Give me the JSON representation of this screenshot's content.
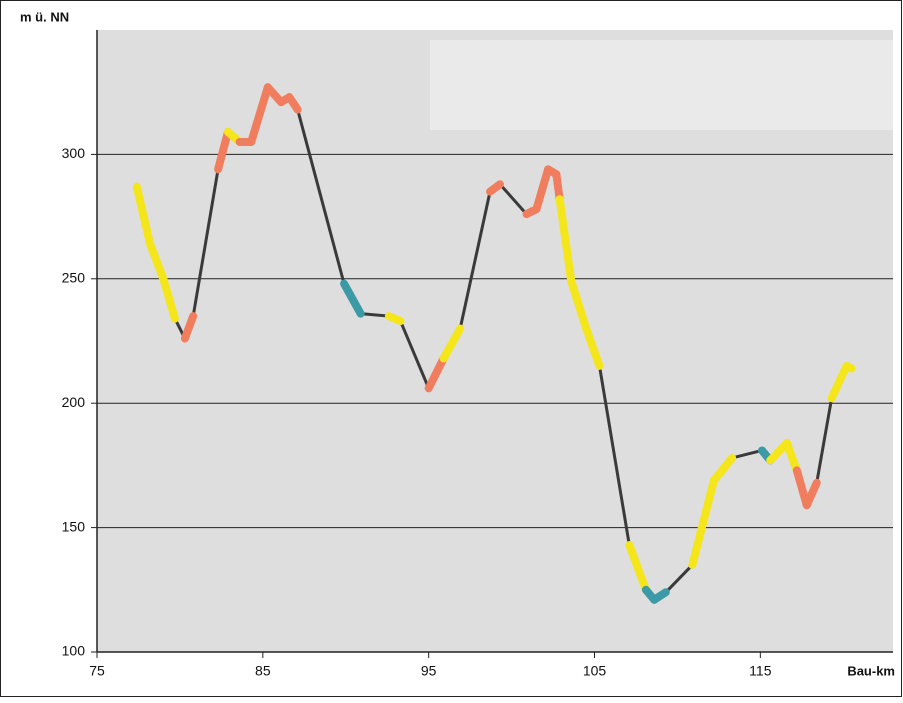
{
  "chart_data": {
    "type": "line",
    "y_label": "m ü. NN",
    "x_label": "Bau-km",
    "xlim": [
      75,
      123
    ],
    "xticks": [
      75,
      85,
      95,
      105,
      115
    ],
    "ylim": [
      100,
      350
    ],
    "yticks": [
      100,
      150,
      200,
      250,
      300
    ],
    "grid": true,
    "color": "#3a3a3a",
    "x": [
      77.4,
      78.2,
      79.0,
      79.7,
      80.3,
      80.8,
      82.3,
      82.9,
      83.6,
      84.3,
      85.3,
      86.1,
      86.6,
      87.1,
      89.9,
      90.9,
      92.6,
      93.3,
      95.0,
      95.9,
      96.9,
      98.7,
      99.3,
      100.9,
      101.5,
      102.2,
      102.7,
      102.9,
      103.6,
      104.5,
      105.3,
      107.1,
      108.1,
      108.6,
      109.3,
      110.9,
      112.2,
      113.3,
      115.1,
      115.6,
      116.6,
      117.2,
      117.8,
      118.4,
      119.3,
      120.2,
      120.5
    ],
    "values": [
      287,
      264,
      250,
      234,
      226,
      235,
      294,
      309,
      305,
      305,
      327,
      321,
      323,
      318,
      248,
      236,
      235,
      233,
      206,
      218,
      230,
      285,
      288,
      276,
      278,
      294,
      292,
      282,
      249,
      230,
      215,
      143,
      125,
      121,
      124,
      135,
      169,
      178,
      181,
      177,
      184,
      173,
      159,
      168,
      202,
      215,
      214
    ],
    "segment_colors": [
      "#f5e61c",
      "#f5e61c",
      "#f5e61c",
      "#3a3a3a",
      "#f07e5e",
      "#3a3a3a",
      "#f07e5e",
      "#f5e61c",
      "#f07e5e",
      "#f07e5e",
      "#f07e5e",
      "#f07e5e",
      "#f07e5e",
      "#3a3a3a",
      "#3b9aa6",
      "#3a3a3a",
      "#f5e61c",
      "#3a3a3a",
      "#f07e5e",
      "#f5e61c",
      "#3a3a3a",
      "#f07e5e",
      "#3a3a3a",
      "#f07e5e",
      "#f07e5e",
      "#f07e5e",
      "#f07e5e",
      "#f5e61c",
      "#f5e61c",
      "#f5e61c",
      "#3a3a3a",
      "#f5e61c",
      "#3b9aa6",
      "#3b9aa6",
      "#3a3a3a",
      "#f5e61c",
      "#f5e61c",
      "#3a3a3a",
      "#3b9aa6",
      "#f5e61c",
      "#f5e61c",
      "#f07e5e",
      "#f07e5e",
      "#3a3a3a",
      "#f5e61c",
      "#f5e61c"
    ]
  }
}
